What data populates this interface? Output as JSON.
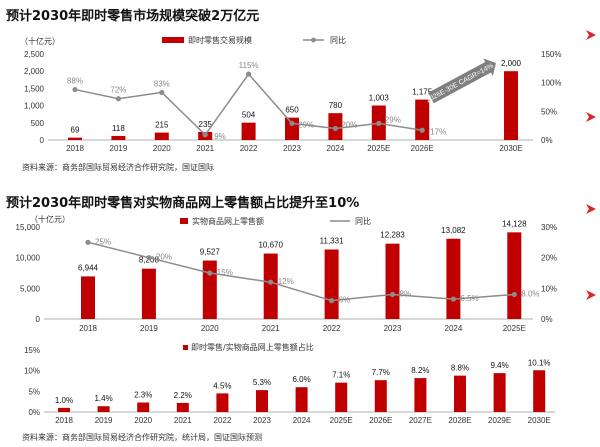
{
  "colors": {
    "bar": "#c00000",
    "line": "#8c8c8c",
    "accent": "#d9262c",
    "arrow": "#7f7f7f"
  },
  "icons": [
    "chevron-right-icon"
  ],
  "chart_data": [
    {
      "type": "bar",
      "title": "预计2030年即时零售市场规模突破2万亿元",
      "unit_label": "（十亿元）",
      "categories": [
        "2018",
        "2019",
        "2020",
        "2021",
        "2022",
        "2023",
        "2024",
        "2025E",
        "2026E",
        "2030E"
      ],
      "series": [
        {
          "name": "即时零售交易规模",
          "type": "bar",
          "values": [
            69,
            118,
            215,
            235,
            504,
            650,
            780,
            1003,
            1175,
            2000
          ]
        },
        {
          "name": "同比",
          "type": "line",
          "axis": "right",
          "values": [
            null,
            72,
            83,
            9,
            115,
            29,
            20,
            29,
            17,
            null
          ],
          "labels": [
            "88%",
            "72%",
            "83%",
            "9%",
            "115%",
            "29%",
            "20%",
            "29%",
            "17%",
            ""
          ],
          "first_point": 88
        }
      ],
      "ylim": [
        0,
        2500
      ],
      "yticks": [
        "0",
        "500",
        "1,000",
        "1,500",
        "2,000",
        "2,500"
      ],
      "y2lim": [
        0,
        150
      ],
      "y2ticks": [
        "0%",
        "50%",
        "100%",
        "150%"
      ],
      "annotation": "2026E-30E CAGR=14%",
      "source": "资料来源：商务部国际贸易经济合作研究院，国证国际"
    },
    {
      "type": "bar",
      "title": "预计2030年即时零售对实物商品网上零售额占比提升至10%",
      "unit_label": "（十亿元）",
      "categories": [
        "2018",
        "2019",
        "2020",
        "2021",
        "2022",
        "2023",
        "2024",
        "2025E"
      ],
      "series": [
        {
          "name": "实物商品网上零售额",
          "type": "bar",
          "values": [
            6944,
            8208,
            9527,
            10670,
            11331,
            12283,
            13082,
            14128
          ],
          "labels": [
            "6,944",
            "8,208",
            "9,527",
            "10,670",
            "11,331",
            "12,283",
            "13,082",
            "14,128"
          ]
        },
        {
          "name": "同比",
          "type": "line",
          "axis": "right",
          "values": [
            25,
            20,
            15,
            12,
            6,
            8,
            6.5,
            8
          ],
          "labels": [
            "25%",
            "20%",
            "15%",
            "12%",
            "6%",
            "8%",
            "6.5%",
            "8.0%"
          ]
        }
      ],
      "ylim": [
        0,
        15000
      ],
      "yticks": [
        "0",
        "5,000",
        "10,000",
        "15,000"
      ],
      "y2lim": [
        0,
        30
      ],
      "y2ticks": [
        "0%",
        "10%",
        "20%",
        "30%"
      ]
    },
    {
      "type": "bar",
      "legend": "即时零售/实物商品网上零售额占比",
      "categories": [
        "2018",
        "2019",
        "2020",
        "2021",
        "2022",
        "2023",
        "2024",
        "2025E",
        "2026E",
        "2027E",
        "2028E",
        "2029E",
        "2030E"
      ],
      "values": [
        1.0,
        1.4,
        2.3,
        2.2,
        4.5,
        5.3,
        6.0,
        7.1,
        7.7,
        8.2,
        8.8,
        9.4,
        10.1
      ],
      "labels": [
        "1.0%",
        "1.4%",
        "2.3%",
        "2.2%",
        "4.5%",
        "5.3%",
        "6.0%",
        "7.1%",
        "7.7%",
        "8.2%",
        "8.8%",
        "9.4%",
        "10.1%"
      ],
      "ylim": [
        0,
        15
      ],
      "yticks": [
        "0%",
        "5%",
        "10%",
        "15%"
      ],
      "source": "资料来源：商务部国际贸易经济合作研究院，统计局，国证国际预测"
    }
  ]
}
